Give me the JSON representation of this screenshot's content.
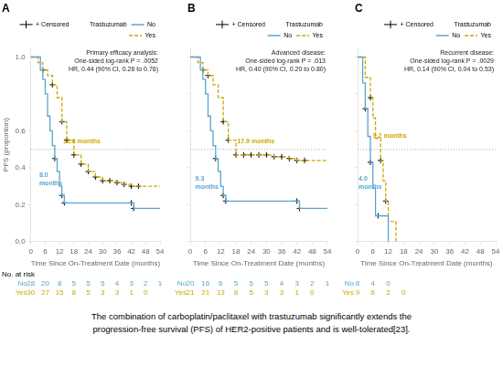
{
  "chart_data": [
    {
      "type": "step",
      "title": "A",
      "xlabel": "Time Since On-Treatment Date (months)",
      "ylabel": "PFS (proportion)",
      "xlim": [
        0,
        54
      ],
      "xticks": [
        0,
        6,
        12,
        18,
        24,
        30,
        36,
        42,
        48,
        54
      ],
      "ylim": [
        0.0,
        1.05
      ],
      "yticks": [
        {
          "value": 0,
          "label": "0.0"
        },
        0.2,
        0.4,
        0.6,
        {
          "value": 1,
          "label": "1.0"
        }
      ],
      "grid": false,
      "legend": "upper right",
      "censored": {
        "label": "+ Censored",
        "marker": "plus",
        "color": "#000000"
      },
      "legend_title": "Trastuzumab",
      "reference_line": {
        "value": 0.5,
        "color": "#aaaaaa",
        "line_style": "dotted"
      },
      "annotation": "Primary efficacy analysis:\nOne-sided log-rank P = .0052\nHR, 0.44 (90% CI, 0.26 to 0.76)",
      "at_risk_title": "No. at risk",
      "series": [
        {
          "name": "No",
          "color": "#5aA4CF",
          "line_style": "solid",
          "x": [
            0,
            4,
            5,
            6,
            7,
            8,
            9,
            10,
            11,
            12,
            13,
            14,
            42,
            43,
            54
          ],
          "values": [
            1.0,
            0.93,
            0.88,
            0.8,
            0.68,
            0.6,
            0.52,
            0.45,
            0.38,
            0.3,
            0.25,
            0.21,
            0.21,
            0.18,
            0.18
          ],
          "censor_x": [
            10,
            13,
            14,
            42,
            43
          ],
          "censor_values": [
            0.45,
            0.25,
            0.21,
            0.21,
            0.18
          ],
          "median_label": {
            "text": "8.0\nmonths",
            "x": 3.5,
            "y": 0.38
          },
          "at_risk": [
            28,
            20,
            8,
            5,
            5,
            5,
            4,
            3,
            2,
            1
          ]
        },
        {
          "name": "Yes",
          "color": "#C9A800",
          "line_style": "dashed",
          "x": [
            0,
            3,
            5,
            7,
            9,
            11,
            13,
            15,
            18,
            21,
            24,
            27,
            30,
            33,
            36,
            39,
            42,
            45,
            54
          ],
          "values": [
            1.0,
            0.97,
            0.93,
            0.9,
            0.85,
            0.78,
            0.65,
            0.55,
            0.47,
            0.42,
            0.38,
            0.35,
            0.33,
            0.33,
            0.32,
            0.31,
            0.3,
            0.3,
            0.3
          ],
          "censor_x": [
            5,
            9,
            13,
            15,
            18,
            21,
            24,
            27,
            30,
            33,
            36,
            39,
            42,
            45
          ],
          "censor_values": [
            0.93,
            0.85,
            0.65,
            0.55,
            0.47,
            0.42,
            0.38,
            0.35,
            0.33,
            0.33,
            0.32,
            0.31,
            0.3,
            0.3
          ],
          "median_label": {
            "text": "12.6 months",
            "x": 13.5,
            "y": 0.52
          },
          "at_risk": [
            30,
            27,
            15,
            8,
            5,
            3,
            3,
            1,
            0
          ]
        }
      ]
    },
    {
      "type": "step",
      "title": "B",
      "xlabel": "Time Since On-Treatment Date (months)",
      "xlim": [
        0,
        54
      ],
      "xticks": [
        0,
        6,
        12,
        18,
        24,
        30,
        36,
        42,
        48,
        54
      ],
      "ylim": [
        0.0,
        1.05
      ],
      "yticks": [
        {
          "value": 0,
          "label": "0.0"
        },
        0.2,
        0.4,
        0.6,
        0.8,
        {
          "value": 1,
          "label": "1.0"
        }
      ],
      "tick_labels": "x",
      "grid": false,
      "legend": "upper right",
      "censored": {
        "label": "+ Censored",
        "marker": "plus",
        "color": "#000000"
      },
      "legend_title": "Trastuzumab",
      "reference_line": {
        "value": 0.5,
        "color": "#aaaaaa",
        "line_style": "dotted"
      },
      "annotation": "Advanced disease:\nOne-sided log-rank P = .013\nHR, 0.40 (90% CI, 0.20 to 0.80)",
      "series": [
        {
          "name": "No",
          "color": "#5aA4CF",
          "line_style": "solid",
          "x": [
            0,
            4,
            5,
            6,
            7,
            8,
            9,
            10,
            11,
            12,
            13,
            14,
            42,
            43,
            54
          ],
          "values": [
            1.0,
            0.93,
            0.88,
            0.8,
            0.68,
            0.6,
            0.52,
            0.45,
            0.38,
            0.3,
            0.25,
            0.22,
            0.22,
            0.18,
            0.18
          ],
          "censor_x": [
            10,
            13,
            14,
            42,
            43
          ],
          "censor_values": [
            0.45,
            0.25,
            0.22,
            0.22,
            0.18
          ],
          "median_label": {
            "text": "9.3\nmonths",
            "x": 2.0,
            "y": 0.36
          },
          "at_risk": [
            20,
            16,
            6,
            5,
            5,
            5,
            4,
            3,
            2,
            1
          ]
        },
        {
          "name": "Yes",
          "color": "#C9A800",
          "line_style": "dashed",
          "x": [
            0,
            3,
            5,
            7,
            9,
            11,
            13,
            15,
            18,
            21,
            24,
            27,
            30,
            33,
            36,
            39,
            42,
            45,
            54
          ],
          "values": [
            1.0,
            0.97,
            0.93,
            0.9,
            0.85,
            0.78,
            0.65,
            0.55,
            0.47,
            0.47,
            0.47,
            0.47,
            0.47,
            0.46,
            0.46,
            0.45,
            0.44,
            0.44,
            0.44
          ],
          "censor_x": [
            5,
            7,
            13,
            15,
            18,
            21,
            24,
            27,
            30,
            33,
            36,
            39,
            42,
            45
          ],
          "censor_values": [
            0.93,
            0.9,
            0.65,
            0.55,
            0.47,
            0.47,
            0.47,
            0.47,
            0.47,
            0.46,
            0.46,
            0.45,
            0.44,
            0.44
          ],
          "median_label": {
            "text": "17.9 months",
            "x": 18.5,
            "y": 0.52
          },
          "at_risk": [
            21,
            21,
            13,
            8,
            5,
            3,
            3,
            1,
            0
          ]
        }
      ]
    },
    {
      "type": "step",
      "title": "C",
      "xlabel": "Time Since On-Treatment Date (months)",
      "xlim": [
        0,
        54
      ],
      "xticks": [
        0,
        6,
        12,
        18,
        24,
        30,
        36,
        42,
        48,
        54
      ],
      "ylim": [
        0.0,
        1.05
      ],
      "yticks": [
        {
          "value": 0,
          "label": "0.0"
        },
        0.2,
        0.4,
        0.6,
        0.8,
        {
          "value": 1,
          "label": "1.0"
        }
      ],
      "tick_labels": "x",
      "grid": false,
      "legend": "upper right",
      "censored": {
        "label": "+ Censored",
        "marker": "plus",
        "color": "#000000"
      },
      "legend_title": "Trastuzumab",
      "reference_line": {
        "value": 0.5,
        "color": "#aaaaaa",
        "line_style": "dotted"
      },
      "annotation": "Recurrent disease:\nOne-sided log-rank P = .0029\nHR, 0.14 (90% CI, 0.04 to 0.53)",
      "series": [
        {
          "name": "No",
          "color": "#5aA4CF",
          "line_style": "solid",
          "x": [
            0,
            2,
            3,
            4,
            5,
            6,
            7,
            8,
            12
          ],
          "values": [
            1.0,
            0.86,
            0.72,
            0.57,
            0.43,
            0.29,
            0.14,
            0.14,
            0.0
          ],
          "censor_x": [
            3,
            5,
            8
          ],
          "censor_values": [
            0.72,
            0.43,
            0.14
          ],
          "median_label": {
            "text": "4.0\nmonths",
            "x": 0.4,
            "y": 0.36
          },
          "at_risk": [
            8,
            4,
            0
          ]
        },
        {
          "name": "Yes",
          "color": "#C9A800",
          "line_style": "dashed",
          "x": [
            0,
            3,
            5,
            6,
            7,
            9,
            10,
            11,
            12,
            15
          ],
          "values": [
            1.0,
            0.89,
            0.78,
            0.67,
            0.56,
            0.44,
            0.33,
            0.22,
            0.11,
            0.0
          ],
          "censor_x": [
            5,
            9,
            11
          ],
          "censor_values": [
            0.78,
            0.44,
            0.22
          ],
          "median_label": {
            "text": "9.2 months",
            "x": 6.0,
            "y": 0.55
          },
          "at_risk": [
            9,
            6,
            2,
            0
          ]
        }
      ]
    }
  ],
  "footer": "The combination of carboplatin/paclitaxel with trastuzumab significantly extends the\nprogression-free survival (PFS) of HER2-positive patients and is well-tolerated[23]."
}
